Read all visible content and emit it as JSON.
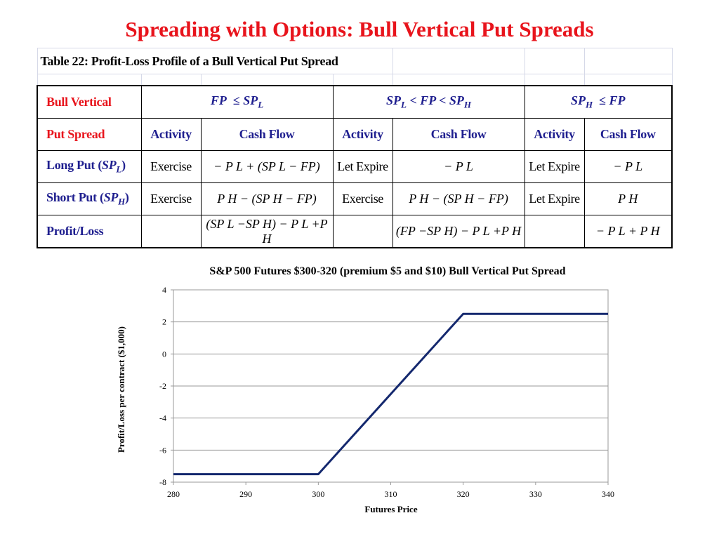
{
  "title": "Spreading with Options: Bull Vertical Put Spreads",
  "table": {
    "caption": "Table 22: Profit-Loss Profile of a Bull Vertical Put Spread",
    "row1_label": "Bull Vertical",
    "row2_label": "Put Spread",
    "ranges": [
      {
        "a": "FP",
        "op1": "≤",
        "b": "SP",
        "bsub": "L",
        "op2": "",
        "c": "",
        "csub": ""
      },
      {
        "a": "SP",
        "asub": "L",
        "op1": "<",
        "b": "FP",
        "op2": "<",
        "c": "SP",
        "csub": "H"
      },
      {
        "a": "SP",
        "asub": "H",
        "op1": "≤",
        "b": "FP"
      }
    ],
    "col_headers": [
      "Activity",
      "Cash Flow",
      "Activity",
      "Cash Flow",
      "Activity",
      "Cash Flow"
    ],
    "long_put": {
      "label": "Long Put (",
      "label_var": "SP",
      "label_sub": "L",
      "label_close": ")",
      "cells": [
        "Exercise",
        "Let Expire",
        "Let Expire"
      ],
      "cf1": "− P L + (SP L − FP)",
      "cf2": "− P L",
      "cf3": "− P L"
    },
    "short_put": {
      "label": "Short Put (",
      "label_var": "SP",
      "label_sub": "H",
      "label_close": ")",
      "cells": [
        "Exercise",
        "Exercise",
        "Let Expire"
      ],
      "cf1": "P H − (SP H − FP)",
      "cf2": "P H − (SP H − FP)",
      "cf3": "P H"
    },
    "profit_loss": {
      "label": "Profit/Loss",
      "pl1": "(SP L −SP H) − P L +P H",
      "pl2": "(FP −SP H) − P L +P H",
      "pl3": "− P L + P H"
    }
  },
  "chart_data": {
    "type": "line",
    "title": "S&P 500 Futures $300-320 (premium $5 and $10) Bull Vertical Put Spread",
    "xlabel": "Futures Price",
    "ylabel": "Profit/Loss per contract ($1,000)",
    "xlim": [
      280,
      340
    ],
    "ylim": [
      -8,
      4
    ],
    "xticks": [
      280,
      290,
      300,
      310,
      320,
      330,
      340
    ],
    "yticks": [
      4,
      2,
      0,
      -2,
      -4,
      -6,
      -8
    ],
    "grid": "horizontal",
    "series": [
      {
        "x": [
          280,
          300,
          320,
          340
        ],
        "y": [
          -7.5,
          -7.5,
          2.5,
          2.5
        ],
        "color": "#14286e"
      }
    ]
  }
}
